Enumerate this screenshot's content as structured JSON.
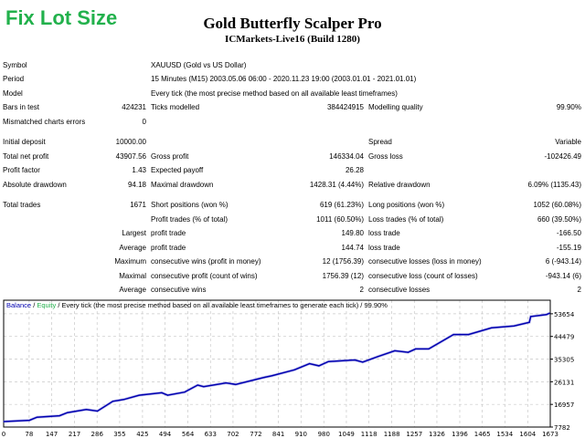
{
  "badge": "Fix Lot Size",
  "header": {
    "title": "Gold Butterfly Scalper Pro",
    "subtitle": "ICMarkets-Live16 (Build 1280)"
  },
  "rows": [
    {
      "c1": "Symbol",
      "v1": "",
      "c2": "XAUUSD (Gold vs US Dollar)",
      "v2": "",
      "c3": "",
      "v3": ""
    },
    {
      "c1": "Period",
      "v1": "",
      "c2": "15 Minutes (M15) 2003.05.06 06:00 - 2020.11.23 19:00 (2003.01.01 - 2021.01.01)",
      "v2": "",
      "c3": "",
      "v3": ""
    },
    {
      "c1": "Model",
      "v1": "",
      "c2": "Every tick (the most precise method based on all available least timeframes)",
      "v2": "",
      "c3": "",
      "v3": ""
    },
    {
      "c1": "Bars in test",
      "v1": "424231",
      "c2": "Ticks modelled",
      "v2": "384424915",
      "c3": "Modelling quality",
      "v3": "99.90%"
    },
    {
      "c1": "Mismatched charts errors",
      "v1": "0",
      "c2": "",
      "v2": "",
      "c3": "",
      "v3": ""
    },
    {
      "c1": "Initial deposit",
      "v1": "10000.00",
      "c2": "",
      "v2": "",
      "c3": "Spread",
      "v3": "Variable"
    },
    {
      "c1": "Total net profit",
      "v1": "43907.56",
      "c2": "Gross profit",
      "v2": "146334.04",
      "c3": "Gross loss",
      "v3": "-102426.49"
    },
    {
      "c1": "Profit factor",
      "v1": "1.43",
      "c2": "Expected payoff",
      "v2": "26.28",
      "c3": "",
      "v3": ""
    },
    {
      "c1": "Absolute drawdown",
      "v1": "94.18",
      "c2": "Maximal drawdown",
      "v2": "1428.31 (4.44%)",
      "c3": "Relative drawdown",
      "v3": "6.09% (1135.43)"
    },
    {
      "c1": "Total trades",
      "v1": "1671",
      "c2": "Short positions (won %)",
      "v2": "619 (61.23%)",
      "c3": "Long positions (won %)",
      "v3": "1052 (60.08%)"
    },
    {
      "c1": "",
      "v1": "",
      "c2": "Profit trades (% of total)",
      "v2": "1011 (60.50%)",
      "c3": "Loss trades (% of total)",
      "v3": "660 (39.50%)"
    },
    {
      "c1": "",
      "v1": "Largest",
      "c2": "profit trade",
      "v2": "149.80",
      "c3": "loss trade",
      "v3": "-166.50"
    },
    {
      "c1": "",
      "v1": "Average",
      "c2": "profit trade",
      "v2": "144.74",
      "c3": "loss trade",
      "v3": "-155.19"
    },
    {
      "c1": "",
      "v1": "Maximum",
      "c2": "consecutive wins (profit in money)",
      "v2": "12 (1756.39)",
      "c3": "consecutive losses (loss in money)",
      "v3": "6 (-943.14)"
    },
    {
      "c1": "",
      "v1": "Maximal",
      "c2": "consecutive profit (count of wins)",
      "v2": "1756.39 (12)",
      "c3": "consecutive loss (count of losses)",
      "v3": "-943.14 (6)"
    },
    {
      "c1": "",
      "v1": "Average",
      "c2": "consecutive wins",
      "v2": "2",
      "c3": "consecutive losses",
      "v3": "2"
    }
  ],
  "chart_data": {
    "type": "line",
    "legend": {
      "balance": "Balance",
      "sep1": " / ",
      "equity": "Equity",
      "rest": " / Every tick (the most precise method based on all available least timeframes to generate each tick) / 99.90%"
    },
    "colors": {
      "balance": "#0000b0",
      "equity": "#22b14c",
      "grid": "#c8c8c8"
    },
    "xlim": [
      0,
      1673
    ],
    "ylim": [
      7782,
      59150
    ],
    "x_ticks": [
      0,
      78,
      147,
      217,
      286,
      355,
      425,
      494,
      564,
      633,
      702,
      772,
      841,
      910,
      980,
      1049,
      1118,
      1188,
      1257,
      1326,
      1396,
      1465,
      1534,
      1604,
      1673
    ],
    "y_ticks": [
      7782,
      16957,
      26131,
      35305,
      44479,
      53654
    ],
    "grid": true,
    "series": [
      {
        "name": "Balance",
        "x": [
          0,
          79,
          102,
          171,
          195,
          253,
          287,
          334,
          368,
          415,
          484,
          502,
          554,
          594,
          612,
          681,
          710,
          797,
          820,
          890,
          936,
          965,
          994,
          1075,
          1099,
          1145,
          1197,
          1238,
          1261,
          1301,
          1377,
          1423,
          1493,
          1562,
          1609,
          1613,
          1661,
          1671
        ],
        "y": [
          10000,
          10522,
          11762,
          12382,
          13622,
          14862,
          14242,
          18210,
          18954,
          20690,
          21682,
          20690,
          21930,
          24782,
          24162,
          25650,
          25030,
          27882,
          28502,
          30962,
          33462,
          32594,
          34330,
          34950,
          34082,
          36314,
          38670,
          38050,
          39414,
          39414,
          45242,
          45242,
          47970,
          48714,
          50202,
          52550,
          53300,
          53907
        ]
      }
    ]
  }
}
